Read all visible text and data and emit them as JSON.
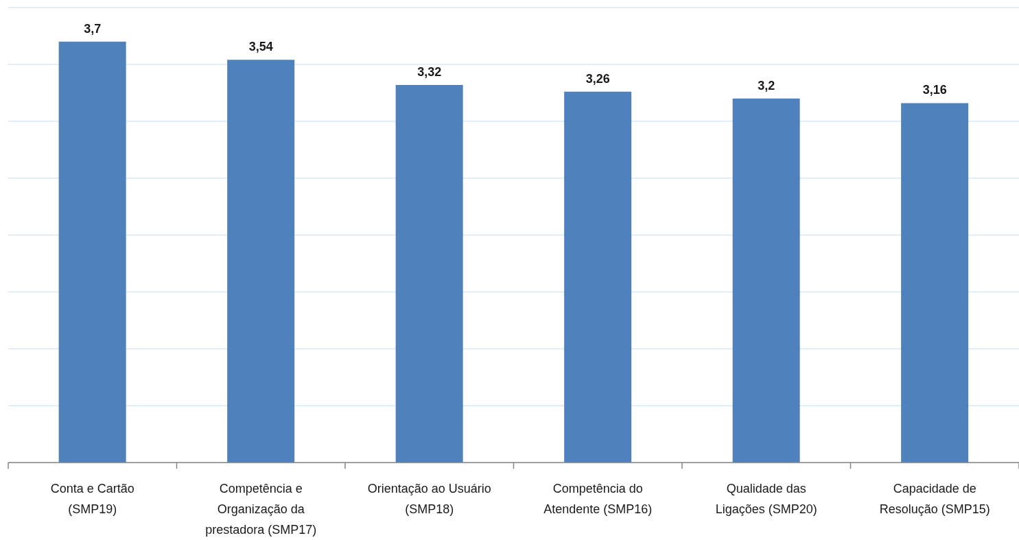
{
  "chart_data": {
    "type": "bar",
    "categories": [
      "Conta e Cartão (SMP19)",
      "Competência e Organização da prestadora (SMP17)",
      "Orientação ao Usuário (SMP18)",
      "Competência do Atendente (SMP16)",
      "Qualidade das Ligações (SMP20)",
      "Capacidade de Resolução (SMP15)"
    ],
    "values": [
      3.7,
      3.54,
      3.32,
      3.26,
      3.2,
      3.16
    ],
    "value_labels": [
      "3,7",
      "3,54",
      "3,32",
      "3,26",
      "3,2",
      "3,16"
    ],
    "color": "#4f81bd",
    "ylim": [
      0,
      4
    ],
    "yticks": [
      {
        "value": 0,
        "label": null
      },
      {
        "value": 0.5,
        "label": null
      },
      {
        "value": 1,
        "label": null
      },
      {
        "value": 1.5,
        "label": null
      },
      {
        "value": 2,
        "label": null
      },
      {
        "value": 2.5,
        "label": null
      },
      {
        "value": 3,
        "label": null
      },
      {
        "value": 3.5,
        "label": null
      },
      {
        "value": 4,
        "label": null
      }
    ],
    "grid": "y",
    "tick_labels": "x"
  }
}
